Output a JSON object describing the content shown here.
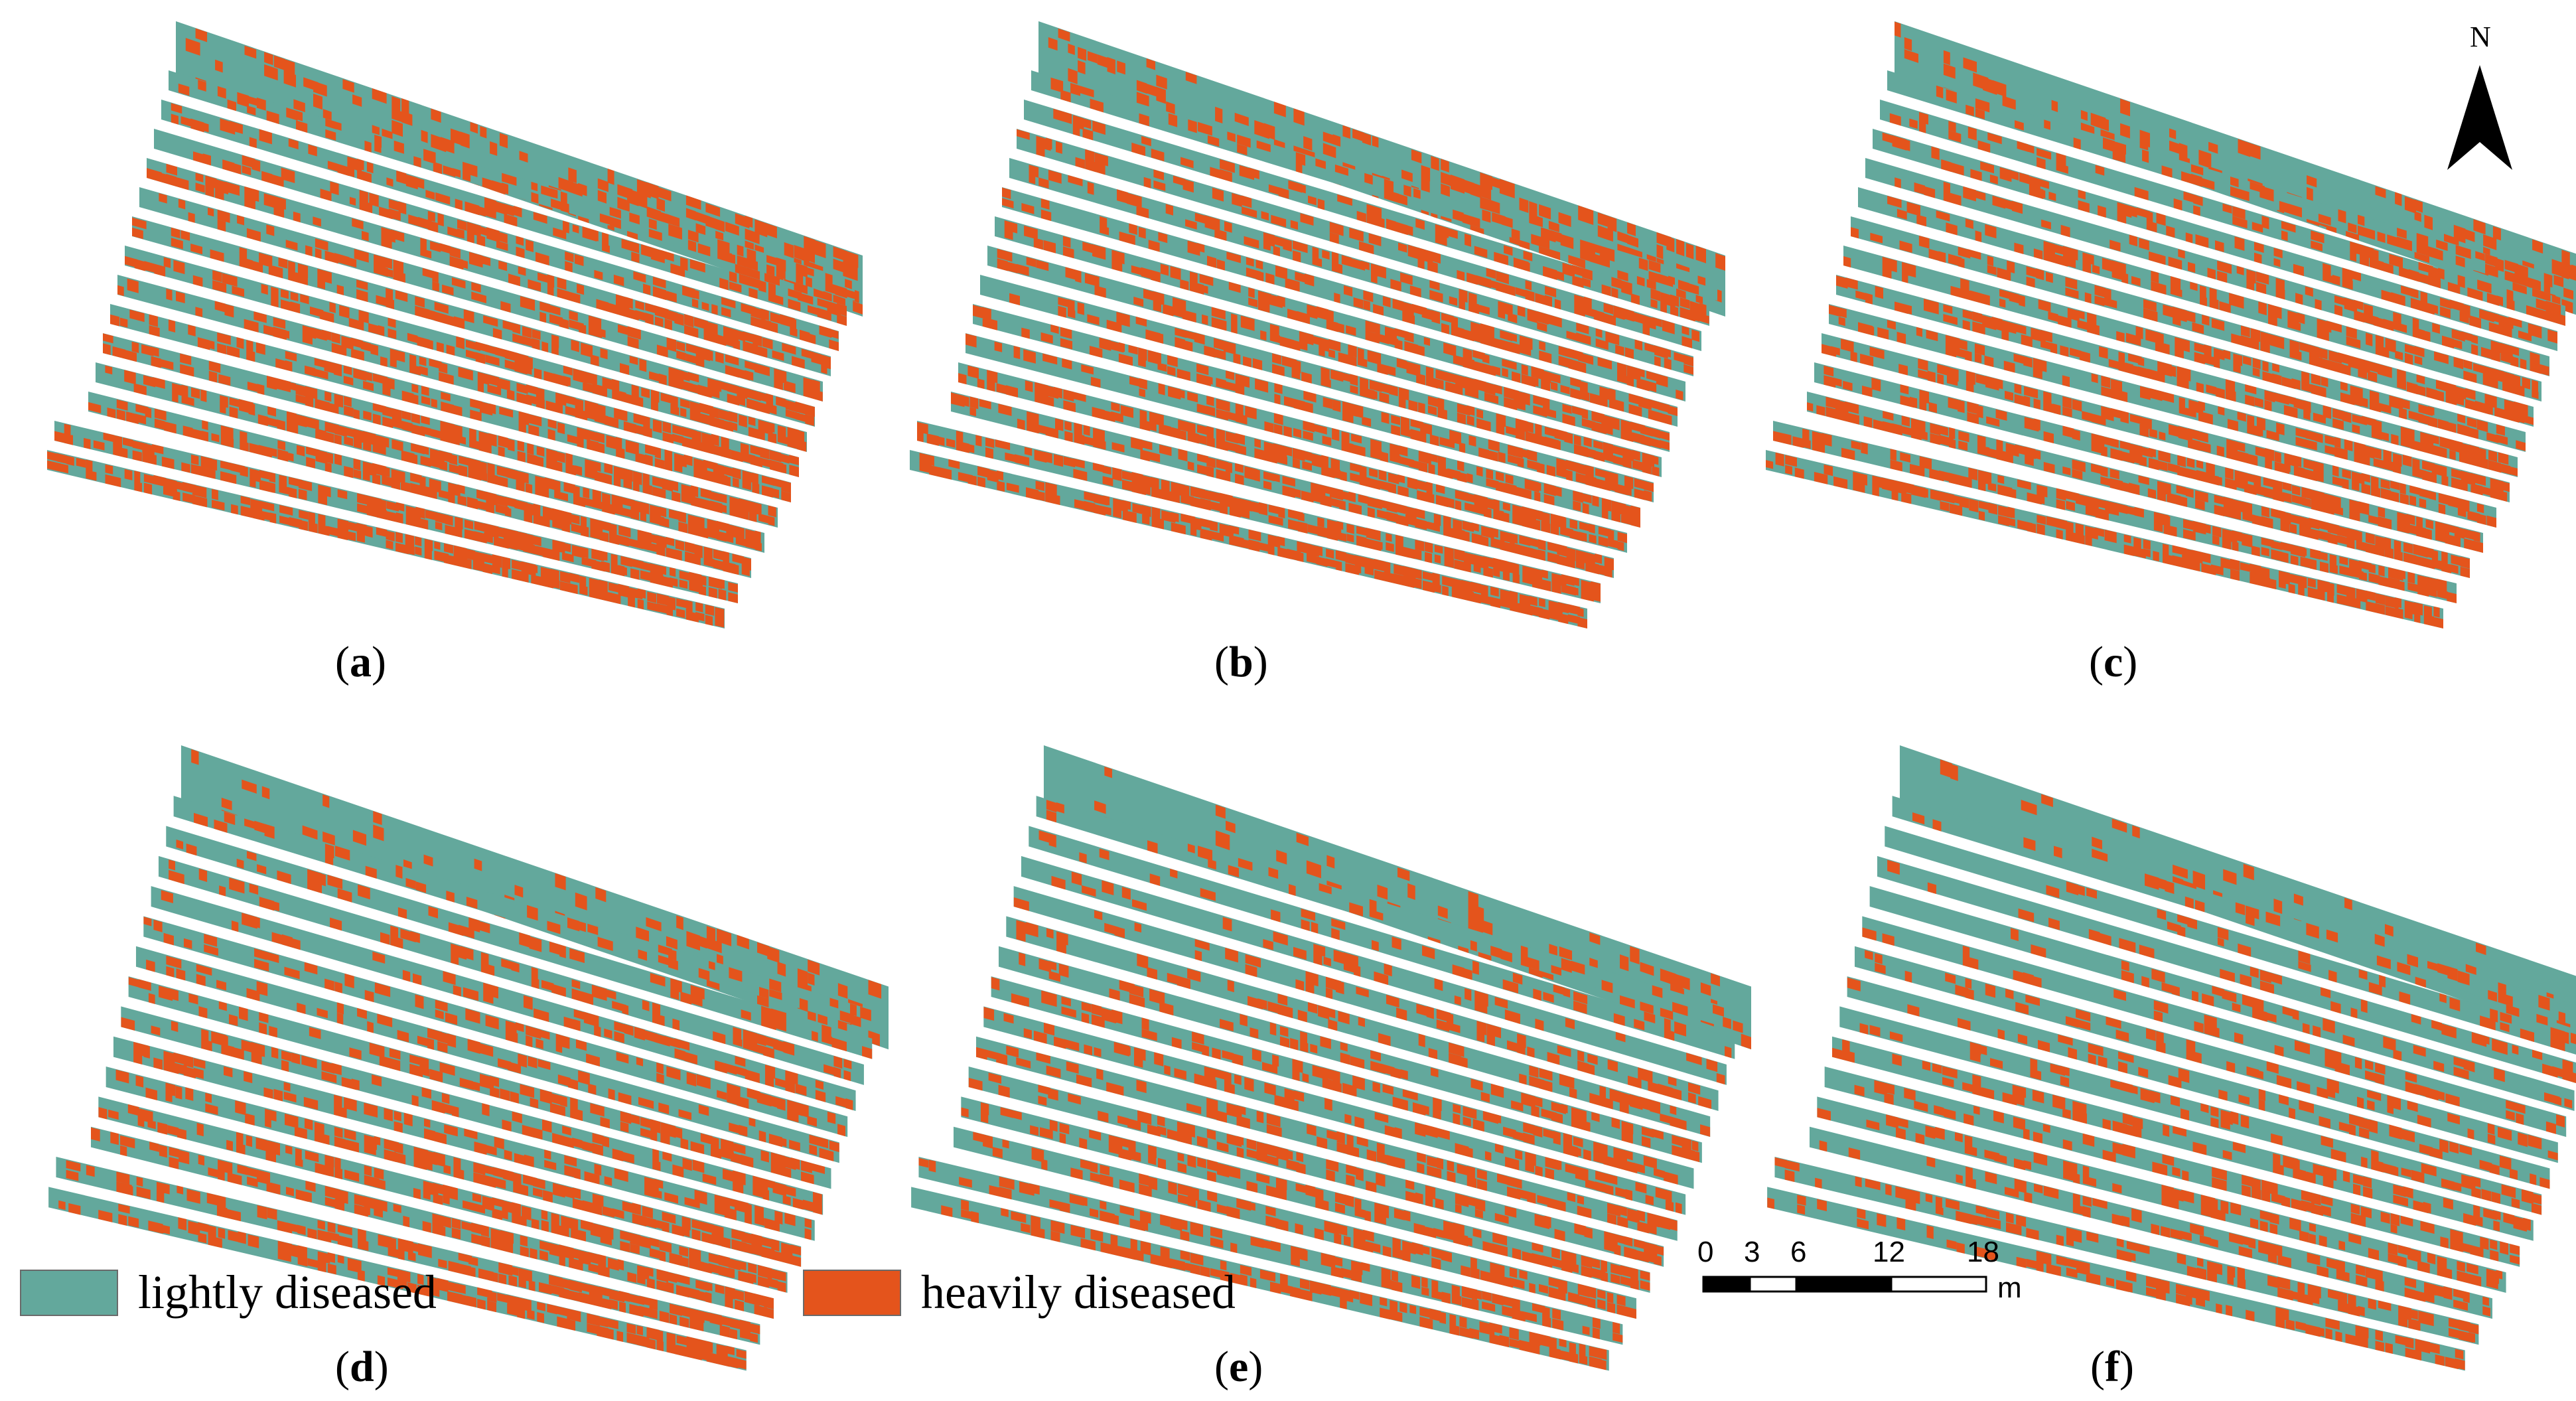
{
  "colors": {
    "lightly": "#63a89c",
    "heavily": "#e4541c",
    "background": "#ffffff"
  },
  "panels": [
    {
      "id": "a",
      "label": "a",
      "heavy_fraction_top": 0.45,
      "heavy_fraction_bottom": 0.97
    },
    {
      "id": "b",
      "label": "b",
      "heavy_fraction_top": 0.38,
      "heavy_fraction_bottom": 0.93
    },
    {
      "id": "c",
      "label": "c",
      "heavy_fraction_top": 0.33,
      "heavy_fraction_bottom": 0.88
    },
    {
      "id": "d",
      "label": "d",
      "heavy_fraction_top": 0.22,
      "heavy_fraction_bottom": 0.78
    },
    {
      "id": "e",
      "label": "e",
      "heavy_fraction_top": 0.2,
      "heavy_fraction_bottom": 0.7
    },
    {
      "id": "f",
      "label": "f",
      "heavy_fraction_top": 0.17,
      "heavy_fraction_bottom": 0.52
    }
  ],
  "legend": {
    "lightly_label": "lightly diseased",
    "heavily_label": "heavily diseased"
  },
  "scale_bar": {
    "ticks": [
      "0",
      "3",
      "6",
      "12",
      "18"
    ],
    "unit": "m"
  },
  "north_arrow": {
    "letter": "N"
  },
  "icons": {
    "north": "north-arrow-icon"
  }
}
